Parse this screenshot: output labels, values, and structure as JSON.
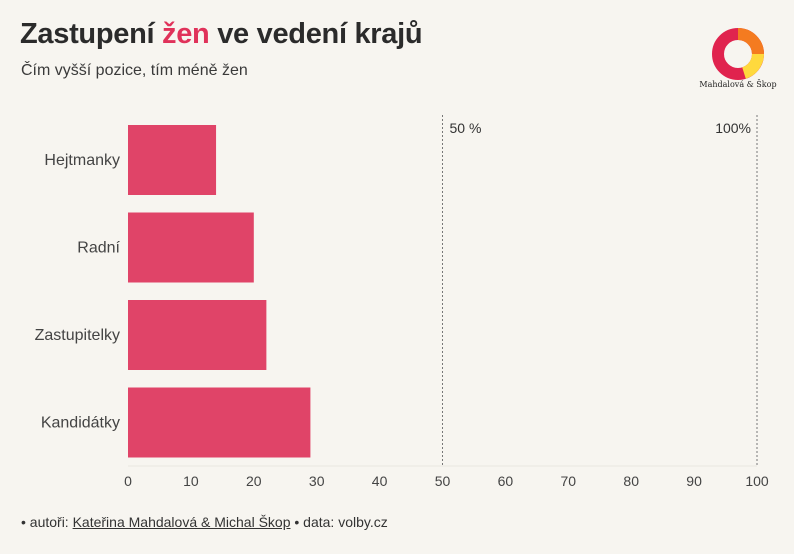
{
  "header": {
    "title_before": "Zastupení ",
    "title_highlight": "žen",
    "title_after": " ve vedení krajů",
    "subtitle": "Čím vyšší pozice, tím méně žen",
    "logo_text": "Mahdalová & Škop"
  },
  "colors": {
    "bar": "#e04468",
    "accent": "#e0325a",
    "reference_line": "#777777",
    "logo_red": "#e0234e",
    "logo_orange": "#f47b20",
    "logo_yellow": "#ffd93d"
  },
  "chart_data": {
    "type": "bar",
    "orientation": "horizontal",
    "title": "Zastupení žen ve vedení krajů",
    "subtitle": "Čím vyšší pozice, tím méně žen",
    "categories": [
      "Hejtmanky",
      "Radní",
      "Zastupitelky",
      "Kandidátky"
    ],
    "values": [
      14,
      20,
      22,
      29
    ],
    "xlim": [
      0,
      100
    ],
    "xticks": [
      0,
      10,
      20,
      30,
      40,
      50,
      60,
      70,
      80,
      90,
      100
    ],
    "xlabel": "",
    "ylabel": "",
    "reference_lines": [
      {
        "value": 50,
        "label": "50 %"
      },
      {
        "value": 100,
        "label": "100%"
      }
    ],
    "grid": false,
    "legend": "none"
  },
  "footer": {
    "authors_prefix": "• autoři: ",
    "authors": "Kateřina Mahdalová & Michal Škop",
    "data_text": " • data: volby.cz"
  }
}
